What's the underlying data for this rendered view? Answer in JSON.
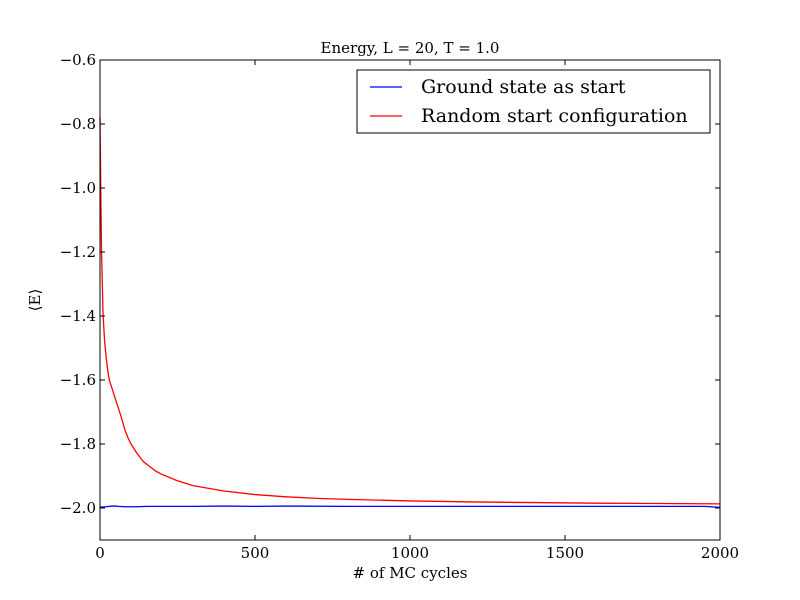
{
  "chart_data": {
    "type": "line",
    "title": "Energy, L = 20, T = 1.0",
    "xlabel": "# of MC cycles",
    "ylabel": "⟨E⟩",
    "xlim": [
      0,
      2000
    ],
    "ylim": [
      -2.1,
      -0.6
    ],
    "xticks": [
      0,
      500,
      1000,
      1500,
      2000
    ],
    "xtick_labels": [
      "0",
      "500",
      "1000",
      "1500",
      "2000"
    ],
    "yticks": [
      -0.6,
      -0.8,
      -1.0,
      -1.2,
      -1.4,
      -1.6,
      -1.8,
      -2.0
    ],
    "ytick_labels": [
      "−0.6",
      "−0.8",
      "−1.0",
      "−1.2",
      "−1.4",
      "−1.6",
      "−1.8",
      "−2.0"
    ],
    "grid": false,
    "legend_position": "top-right",
    "series": [
      {
        "name": "Ground state as start",
        "color": "#0000ff",
        "x": [
          0,
          10,
          20,
          30,
          40,
          50,
          60,
          80,
          100,
          120,
          150,
          200,
          300,
          400,
          500,
          600,
          800,
          1000,
          1200,
          1400,
          1600,
          1800,
          1950,
          2000
        ],
        "y": [
          -1.997,
          -1.997,
          -1.996,
          -1.995,
          -1.994,
          -1.994,
          -1.995,
          -1.996,
          -1.996,
          -1.996,
          -1.995,
          -1.995,
          -1.995,
          -1.994,
          -1.995,
          -1.994,
          -1.995,
          -1.995,
          -1.995,
          -1.995,
          -1.995,
          -1.995,
          -1.995,
          -1.998
        ]
      },
      {
        "name": "Random start configuration",
        "color": "#ff0000",
        "x": [
          0,
          3,
          5,
          8,
          10,
          15,
          20,
          25,
          30,
          40,
          50,
          60,
          70,
          80,
          90,
          100,
          120,
          140,
          160,
          180,
          200,
          250,
          300,
          400,
          500,
          600,
          700,
          800,
          1000,
          1200,
          1400,
          1600,
          1800,
          2000
        ],
        "y": [
          -0.78,
          -1.05,
          -1.2,
          -1.32,
          -1.4,
          -1.48,
          -1.53,
          -1.57,
          -1.6,
          -1.63,
          -1.66,
          -1.69,
          -1.72,
          -1.755,
          -1.78,
          -1.8,
          -1.83,
          -1.855,
          -1.87,
          -1.885,
          -1.895,
          -1.915,
          -1.93,
          -1.947,
          -1.958,
          -1.965,
          -1.97,
          -1.973,
          -1.978,
          -1.981,
          -1.983,
          -1.985,
          -1.986,
          -1.987
        ]
      }
    ]
  }
}
